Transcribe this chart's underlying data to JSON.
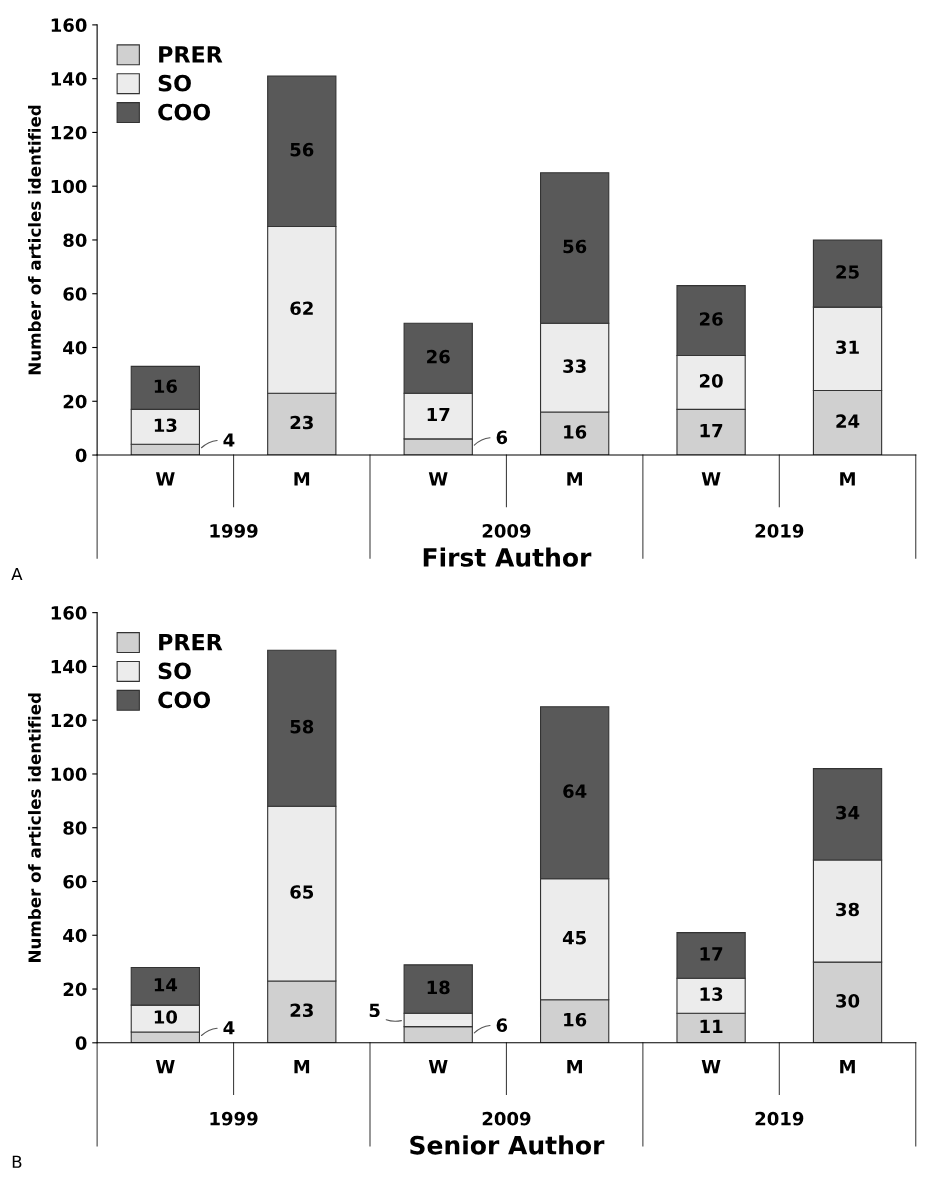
{
  "chart_data": [
    {
      "type": "bar",
      "stacked": true,
      "xlabel": "First Author",
      "ylabel": "Number of articles identified",
      "categories": [
        "W",
        "M",
        "W",
        "M",
        "W",
        "M"
      ],
      "ylim": [
        0,
        160
      ],
      "yticks": [
        0,
        20,
        40,
        60,
        80,
        100,
        120,
        140,
        160
      ],
      "grid": false,
      "legend": "top left",
      "data_labels": true,
      "annotations": [
        "1999",
        "2009",
        "2019",
        "A"
      ],
      "series": [
        {
          "name": "PRER",
          "color": "#d0d0d0",
          "values": [
            4,
            23,
            6,
            16,
            17,
            24
          ]
        },
        {
          "name": "SO",
          "color": "#ececec",
          "values": [
            13,
            62,
            17,
            33,
            20,
            31
          ]
        },
        {
          "name": "COO",
          "color": "#595959",
          "values": [
            16,
            56,
            26,
            56,
            26,
            25
          ]
        }
      ]
    },
    {
      "type": "bar",
      "stacked": true,
      "xlabel": "Senior Author",
      "ylabel": "Number of articles identified",
      "categories": [
        "W",
        "M",
        "W",
        "M",
        "W",
        "M"
      ],
      "ylim": [
        0,
        160
      ],
      "yticks": [
        0,
        20,
        40,
        60,
        80,
        100,
        120,
        140,
        160
      ],
      "grid": false,
      "legend": "top left",
      "data_labels": true,
      "annotations": [
        "1999",
        "2009",
        "2019",
        "B"
      ],
      "series": [
        {
          "name": "PRER",
          "color": "#d0d0d0",
          "values": [
            4,
            23,
            6,
            16,
            11,
            30
          ]
        },
        {
          "name": "SO",
          "color": "#ececec",
          "values": [
            10,
            65,
            5,
            45,
            13,
            38
          ]
        },
        {
          "name": "COO",
          "color": "#595959",
          "values": [
            14,
            58,
            18,
            64,
            17,
            34
          ]
        }
      ]
    }
  ]
}
